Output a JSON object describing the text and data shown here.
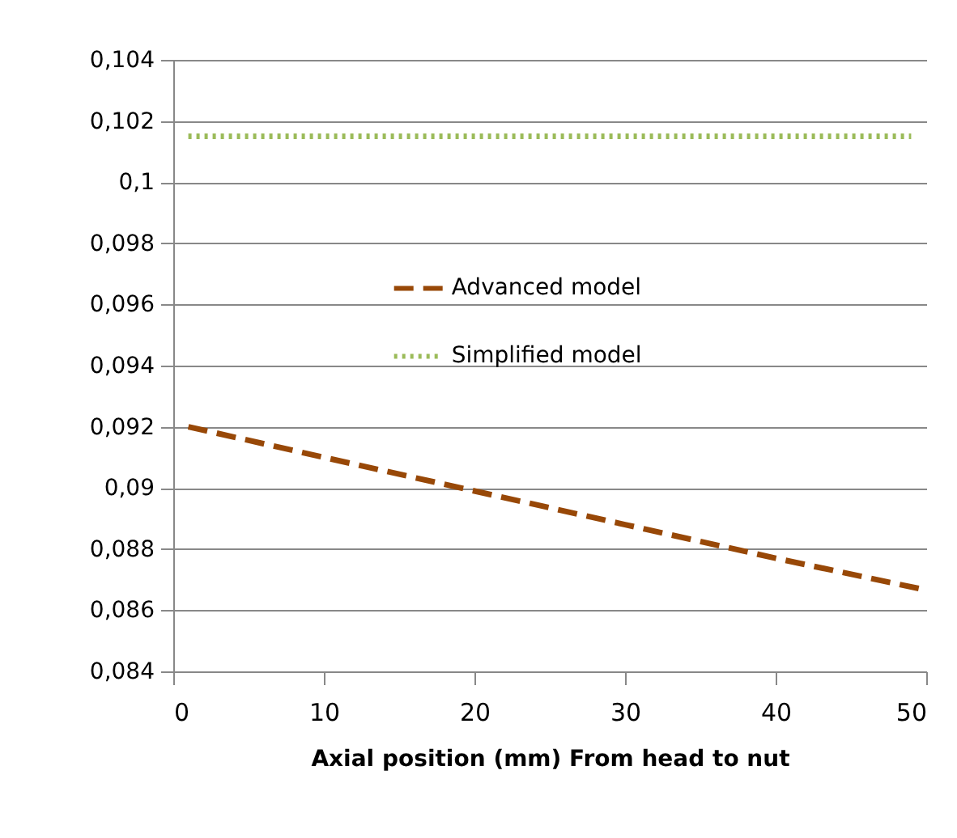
{
  "chart_data": {
    "type": "line",
    "xlabel": "Axial position  (mm) From head to nut",
    "xlim": [
      0,
      50
    ],
    "xticks": [
      0,
      10,
      20,
      30,
      40,
      50
    ],
    "ylim": [
      0.084,
      0.104
    ],
    "yticks": [
      {
        "value": 0.084,
        "label": "0,084"
      },
      {
        "value": 0.086,
        "label": "0,086"
      },
      {
        "value": 0.088,
        "label": "0,088"
      },
      {
        "value": 0.09,
        "label": "0,09"
      },
      {
        "value": 0.092,
        "label": "0,092"
      },
      {
        "value": 0.094,
        "label": "0,094"
      },
      {
        "value": 0.096,
        "label": "0,096"
      },
      {
        "value": 0.098,
        "label": "0,098"
      },
      {
        "value": 0.1,
        "label": "0,1"
      },
      {
        "value": 0.102,
        "label": "0,102"
      },
      {
        "value": 0.104,
        "label": "0,104"
      }
    ],
    "grid": "y",
    "legend": "right",
    "marker": "none",
    "series": [
      {
        "name": "Advanced model",
        "color": "#984807",
        "line_style": "dashed",
        "x": [
          1,
          10,
          20,
          30,
          40,
          49.6
        ],
        "values": [
          0.092,
          0.091,
          0.0899,
          0.0888,
          0.0877,
          0.0867
        ]
      },
      {
        "name": "Simplified model",
        "color": "#9bbb59",
        "line_style": "dotted",
        "x": [
          1,
          49
        ],
        "values": [
          0.1015,
          0.1015
        ]
      }
    ]
  }
}
